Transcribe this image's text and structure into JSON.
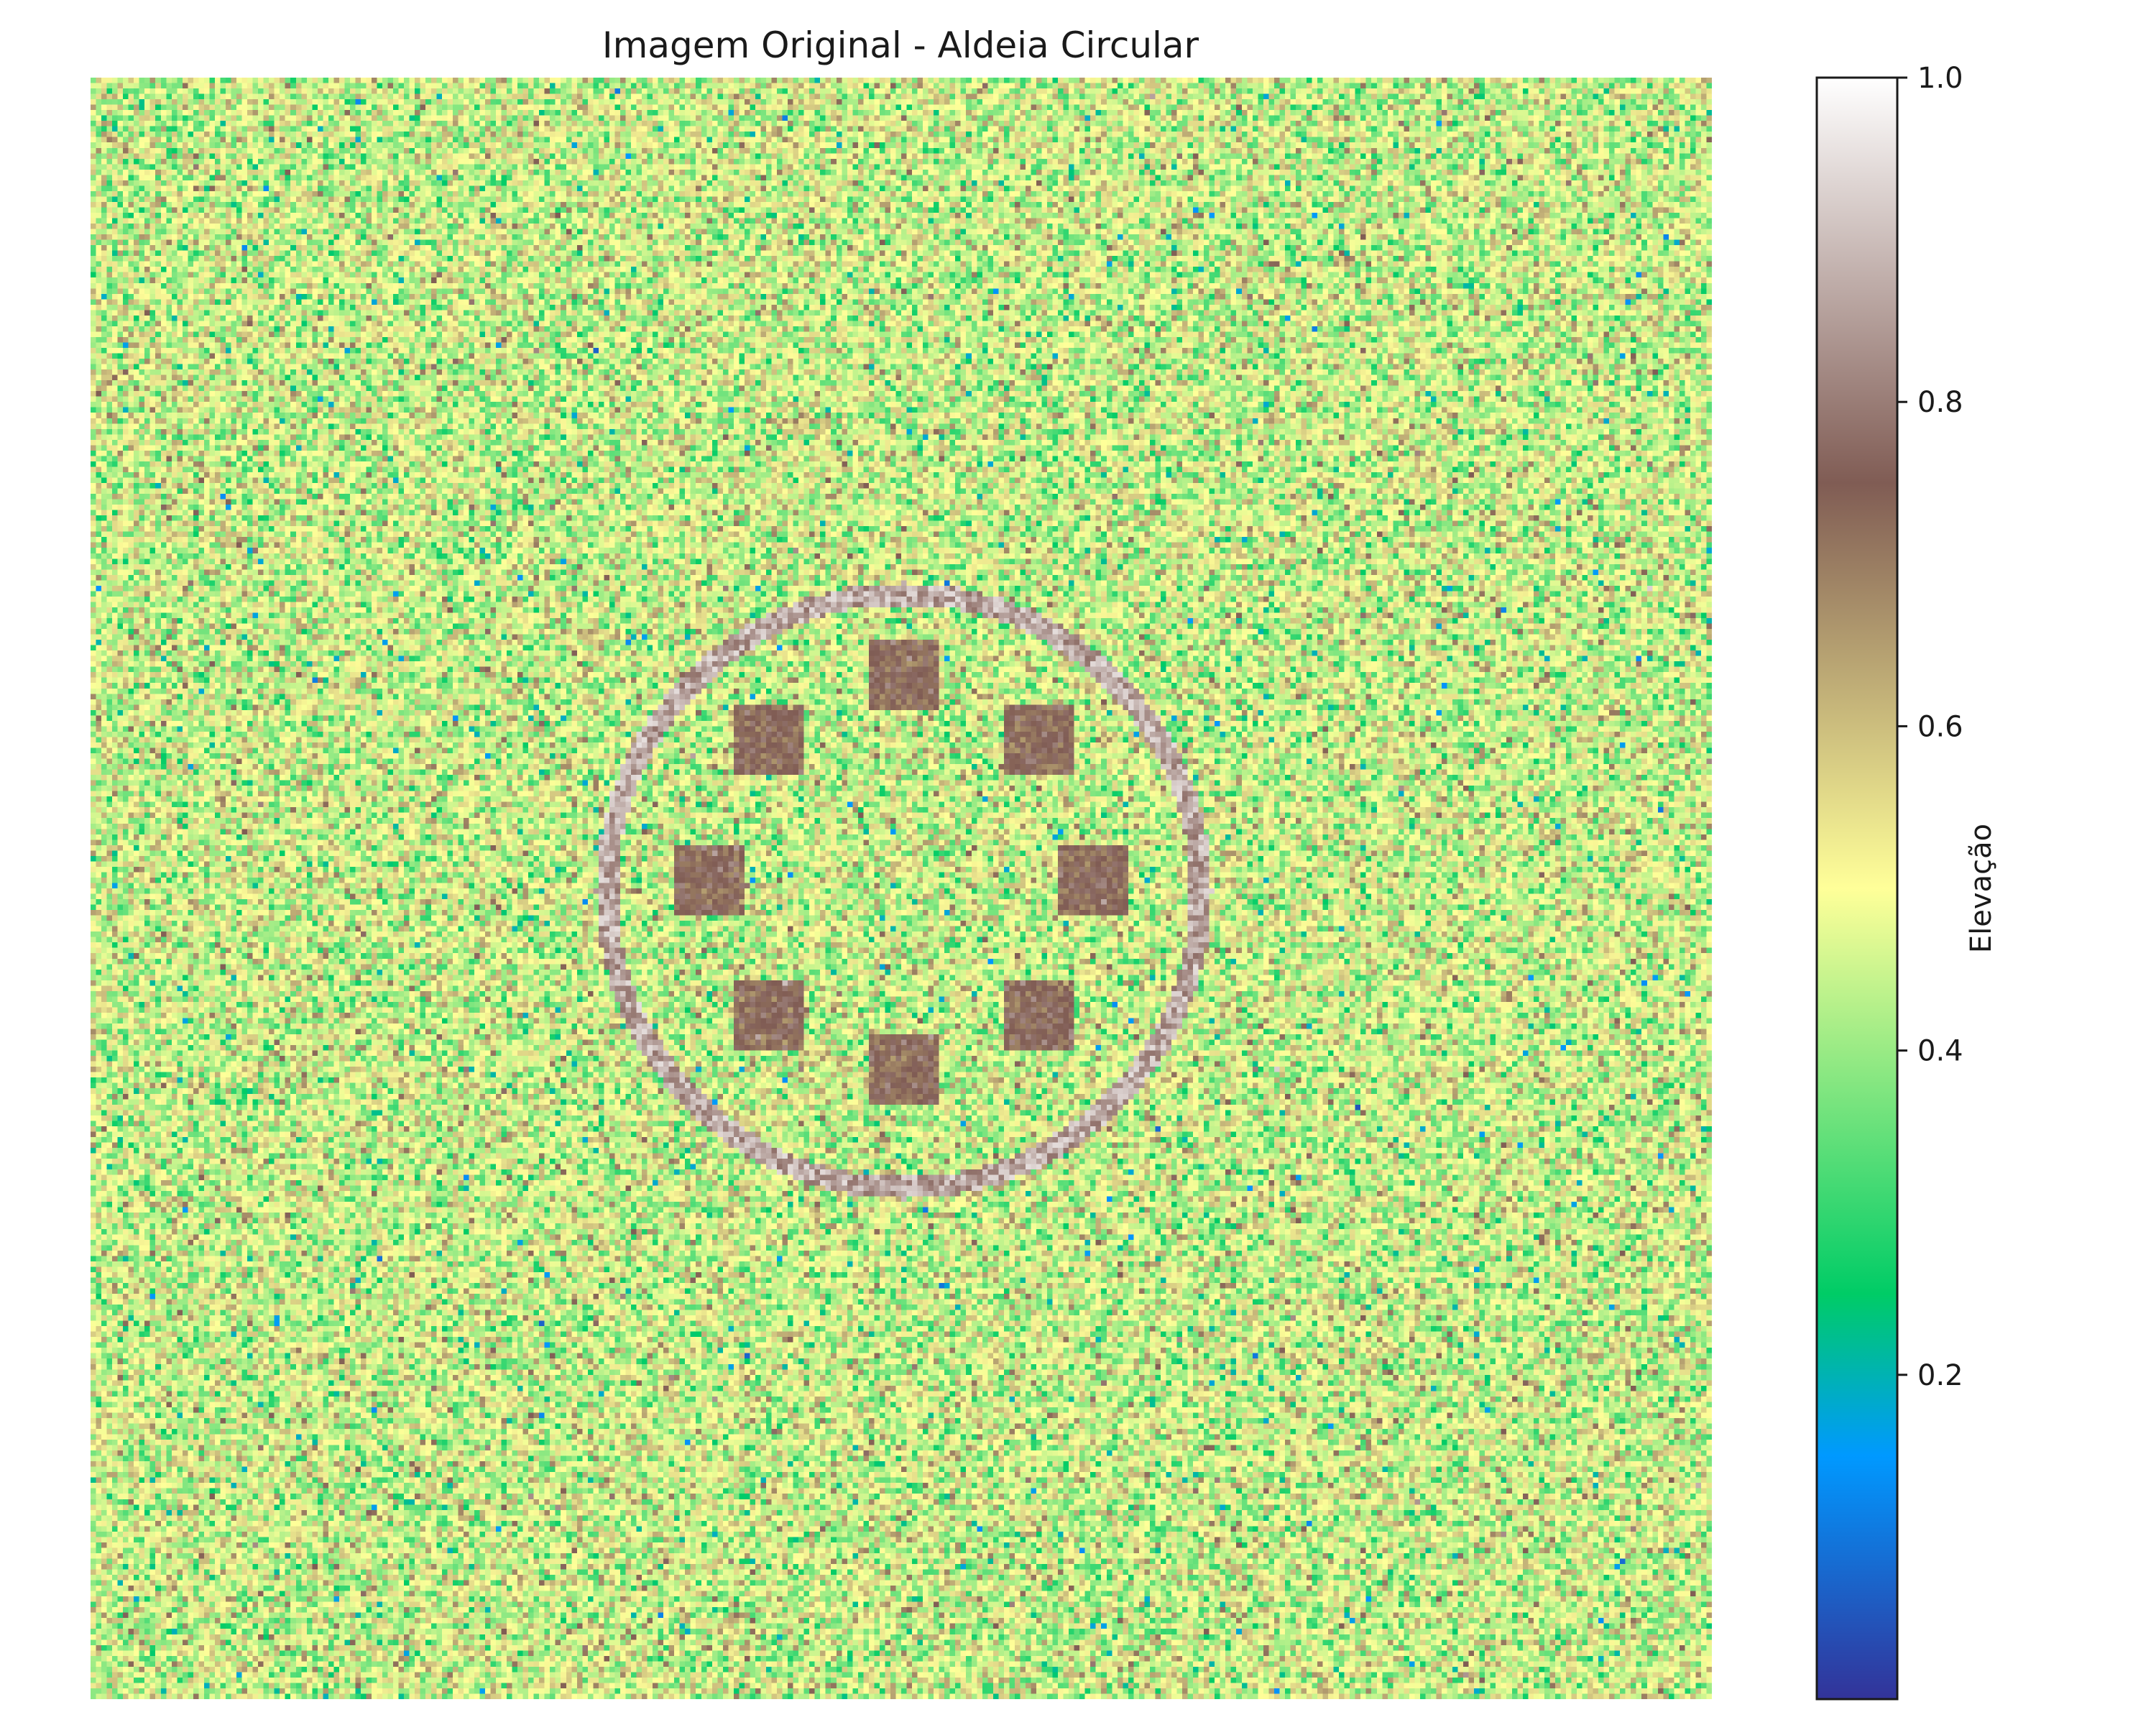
{
  "chart_data": {
    "type": "heatmap",
    "title": "Imagem Original - Aldeia Circular",
    "xlabel": "",
    "ylabel": "",
    "axes_visible": false,
    "colormap": "terrain",
    "colormap_stops": [
      {
        "value": 0.0,
        "color": "#333399"
      },
      {
        "value": 0.15,
        "color": "#0099ff"
      },
      {
        "value": 0.25,
        "color": "#00cc66"
      },
      {
        "value": 0.5,
        "color": "#ffff99"
      },
      {
        "value": 0.75,
        "color": "#805c54"
      },
      {
        "value": 1.0,
        "color": "#ffffff"
      }
    ],
    "value_range": [
      0.0,
      1.0
    ],
    "grid_size": [
      300,
      300
    ],
    "background": {
      "description": "noisy terrain",
      "mean": 0.47,
      "spread": 0.1
    },
    "ring": {
      "center": [
        150,
        150
      ],
      "radius": 55,
      "width": 4,
      "value_range": [
        0.78,
        0.95
      ]
    },
    "houses": [
      {
        "center": [
          150,
          110
        ],
        "size": 13,
        "value": 0.74
      },
      {
        "center": [
          125,
          122
        ],
        "size": 13,
        "value": 0.74
      },
      {
        "center": [
          175,
          122
        ],
        "size": 13,
        "value": 0.74
      },
      {
        "center": [
          114,
          148
        ],
        "size": 13,
        "value": 0.74
      },
      {
        "center": [
          185,
          148
        ],
        "size": 13,
        "value": 0.74
      },
      {
        "center": [
          125,
          173
        ],
        "size": 13,
        "value": 0.74
      },
      {
        "center": [
          175,
          173
        ],
        "size": 13,
        "value": 0.74
      },
      {
        "center": [
          150,
          183
        ],
        "size": 13,
        "value": 0.74
      }
    ],
    "colorbar": {
      "label": "Elevação",
      "ticks": [
        0.2,
        0.4,
        0.6,
        0.8,
        1.0
      ],
      "tick_labels": [
        "0.2",
        "0.4",
        "0.6",
        "0.8",
        "1.0"
      ],
      "range": [
        0.0,
        1.0
      ],
      "position": "right"
    }
  }
}
